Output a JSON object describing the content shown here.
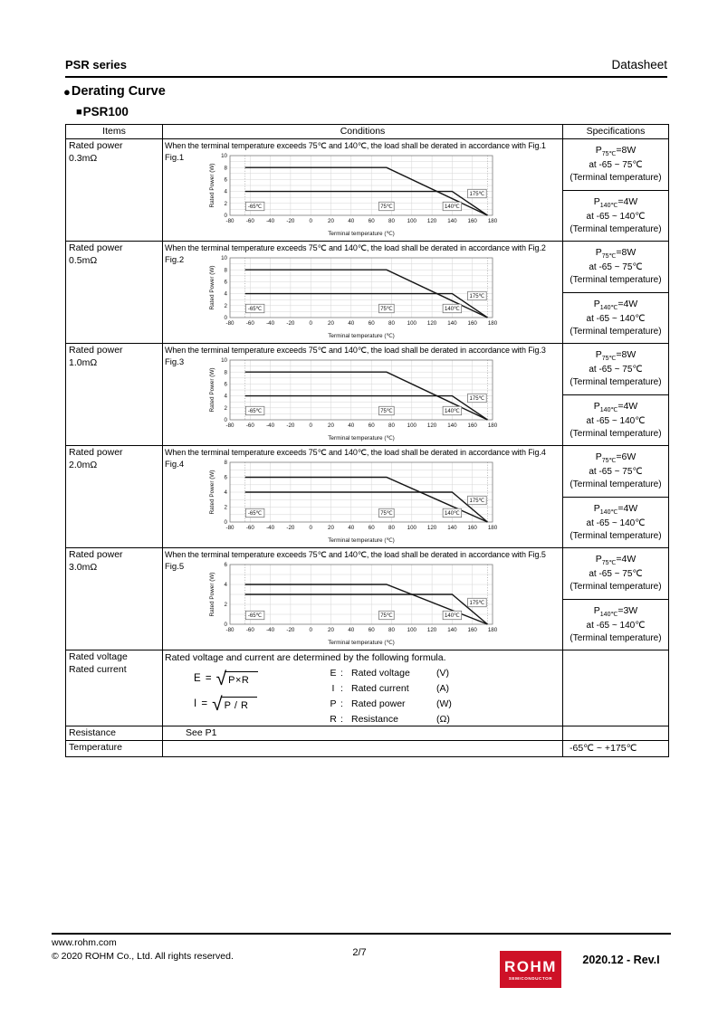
{
  "page": {
    "header_left": "PSR series",
    "header_right": "Datasheet",
    "section_bullet": "●",
    "section_title": "Derating Curve",
    "subsection_bullet": "■",
    "subsection_title": "PSR100"
  },
  "table": {
    "headers": {
      "items": "Items",
      "conditions": "Conditions",
      "specifications": "Specifications"
    }
  },
  "figures": [
    {
      "item_line1": "Rated power",
      "item_line2": "0.3mΩ",
      "condition": "When the terminal temperature exceeds 75℃ and 140℃, the load shall be derated in accordance with Fig.1",
      "label": "Fig.1",
      "chart": {
        "type": "line",
        "xlabel": "Terminal temperature (℃)",
        "ylabel": "Rated Power (W)",
        "xlim": [
          -80,
          180
        ],
        "xtick_step": 20,
        "ylim": [
          0,
          10
        ],
        "ytick_step": 2,
        "series": [
          {
            "name": "derating from 75℃ (8W)",
            "points": [
              [
                -65,
                8
              ],
              [
                75,
                8
              ],
              [
                175,
                0
              ]
            ]
          },
          {
            "name": "derating from 140℃ (4W)",
            "points": [
              [
                -65,
                4
              ],
              [
                140,
                4
              ],
              [
                175,
                0
              ]
            ]
          }
        ],
        "markers": [
          {
            "x": -65,
            "label": "-65℃"
          },
          {
            "x": 75,
            "label": "75℃"
          },
          {
            "x": 140,
            "label": "140℃"
          },
          {
            "x": 175,
            "label": "175℃"
          }
        ],
        "dotted_lines": [
          -65,
          175
        ]
      },
      "specs": [
        {
          "prefix": "P",
          "sub": "75℃",
          "value": "=8W",
          "range": "at -65 ~ 75℃",
          "note": "(Terminal temperature)"
        },
        {
          "prefix": "P",
          "sub": "140℃",
          "value": "=4W",
          "range": "at -65 ~ 140℃",
          "note": "(Terminal temperature)"
        }
      ]
    },
    {
      "item_line1": "Rated power",
      "item_line2": "0.5mΩ",
      "condition": "When the terminal temperature exceeds 75℃ and 140℃, the load shall be derated in accordance with Fig.2",
      "label": "Fig.2",
      "chart": {
        "type": "line",
        "xlabel": "Terminal temperature (℃)",
        "ylabel": "Rated Power (W)",
        "xlim": [
          -80,
          180
        ],
        "xtick_step": 20,
        "ylim": [
          0,
          10
        ],
        "ytick_step": 2,
        "series": [
          {
            "name": "derating from 75℃ (8W)",
            "points": [
              [
                -65,
                8
              ],
              [
                75,
                8
              ],
              [
                175,
                0
              ]
            ]
          },
          {
            "name": "derating from 140℃ (4W)",
            "points": [
              [
                -65,
                4
              ],
              [
                140,
                4
              ],
              [
                175,
                0
              ]
            ]
          }
        ],
        "markers": [
          {
            "x": -65,
            "label": "-65℃"
          },
          {
            "x": 75,
            "label": "75℃"
          },
          {
            "x": 140,
            "label": "140℃"
          },
          {
            "x": 175,
            "label": "175℃"
          }
        ],
        "dotted_lines": [
          -65,
          175
        ]
      },
      "specs": [
        {
          "prefix": "P",
          "sub": "75℃",
          "value": "=8W",
          "range": "at -65 ~ 75℃",
          "note": "(Terminal temperature)"
        },
        {
          "prefix": "P",
          "sub": "140℃",
          "value": "=4W",
          "range": "at -65 ~ 140℃",
          "note": "(Terminal temperature)"
        }
      ]
    },
    {
      "item_line1": "Rated power",
      "item_line2": "1.0mΩ",
      "condition": "When the terminal temperature exceeds 75℃ and 140℃, the load shall be derated in accordance with Fig.3",
      "label": "Fig.3",
      "chart": {
        "type": "line",
        "xlabel": "Terminal temperature (℃)",
        "ylabel": "Rated Power (W)",
        "xlim": [
          -80,
          180
        ],
        "xtick_step": 20,
        "ylim": [
          0,
          10
        ],
        "ytick_step": 2,
        "series": [
          {
            "name": "derating from 75℃ (8W)",
            "points": [
              [
                -65,
                8
              ],
              [
                75,
                8
              ],
              [
                175,
                0
              ]
            ]
          },
          {
            "name": "derating from 140℃ (4W)",
            "points": [
              [
                -65,
                4
              ],
              [
                140,
                4
              ],
              [
                175,
                0
              ]
            ]
          }
        ],
        "markers": [
          {
            "x": -65,
            "label": "-65℃"
          },
          {
            "x": 75,
            "label": "75℃"
          },
          {
            "x": 140,
            "label": "140℃"
          },
          {
            "x": 175,
            "label": "175℃"
          }
        ],
        "dotted_lines": [
          -65,
          175
        ]
      },
      "specs": [
        {
          "prefix": "P",
          "sub": "75℃",
          "value": "=8W",
          "range": "at -65 ~ 75℃",
          "note": "(Terminal temperature)"
        },
        {
          "prefix": "P",
          "sub": "140℃",
          "value": "=4W",
          "range": "at -65 ~ 140℃",
          "note": "(Terminal temperature)"
        }
      ]
    },
    {
      "item_line1": "Rated power",
      "item_line2": "2.0mΩ",
      "condition": "When the terminal temperature exceeds 75℃ and 140℃, the load shall be derated in accordance with Fig.4",
      "label": "Fig.4",
      "chart": {
        "type": "line",
        "xlabel": "Terminal temperature (℃)",
        "ylabel": "Rated Power (W)",
        "xlim": [
          -80,
          180
        ],
        "xtick_step": 20,
        "ylim": [
          0,
          8
        ],
        "ytick_step": 2,
        "series": [
          {
            "name": "derating from 75℃ (6W)",
            "points": [
              [
                -65,
                6
              ],
              [
                75,
                6
              ],
              [
                175,
                0
              ]
            ]
          },
          {
            "name": "derating from 140℃ (4W)",
            "points": [
              [
                -65,
                4
              ],
              [
                140,
                4
              ],
              [
                175,
                0
              ]
            ]
          }
        ],
        "markers": [
          {
            "x": -65,
            "label": "-65℃"
          },
          {
            "x": 75,
            "label": "75℃"
          },
          {
            "x": 140,
            "label": "140℃"
          },
          {
            "x": 175,
            "label": "175℃"
          }
        ],
        "dotted_lines": [
          -65,
          175
        ]
      },
      "specs": [
        {
          "prefix": "P",
          "sub": "75℃",
          "value": "=6W",
          "range": "at -65 ~ 75℃",
          "note": "(Terminal temperature)"
        },
        {
          "prefix": "P",
          "sub": "140℃",
          "value": "=4W",
          "range": "at -65 ~ 140℃",
          "note": "(Terminal temperature)"
        }
      ]
    },
    {
      "item_line1": "Rated power",
      "item_line2": "3.0mΩ",
      "condition": "When the terminal temperature exceeds 75℃ and 140℃, the load shall be derated in accordance with Fig.5",
      "label": "Fig.5",
      "chart": {
        "type": "line",
        "xlabel": "Terminal temperature (℃)",
        "ylabel": "Rated Power (W)",
        "xlim": [
          -80,
          180
        ],
        "xtick_step": 20,
        "ylim": [
          0,
          6
        ],
        "ytick_step": 2,
        "series": [
          {
            "name": "derating from 75℃ (4W)",
            "points": [
              [
                -65,
                4
              ],
              [
                75,
                4
              ],
              [
                175,
                0
              ]
            ]
          },
          {
            "name": "derating from 140℃ (3W)",
            "points": [
              [
                -65,
                3
              ],
              [
                140,
                3
              ],
              [
                175,
                0
              ]
            ]
          }
        ],
        "markers": [
          {
            "x": -65,
            "label": "-65℃"
          },
          {
            "x": 75,
            "label": "75℃"
          },
          {
            "x": 140,
            "label": "140℃"
          },
          {
            "x": 175,
            "label": "175℃"
          }
        ],
        "dotted_lines": [
          -65,
          175
        ]
      },
      "specs": [
        {
          "prefix": "P",
          "sub": "75℃",
          "value": "=4W",
          "range": "at -65 ~ 75℃",
          "note": "(Terminal temperature)"
        },
        {
          "prefix": "P",
          "sub": "140℃",
          "value": "=3W",
          "range": "at -65 ~ 140℃",
          "note": "(Terminal temperature)"
        }
      ]
    }
  ],
  "formula_row": {
    "item_line1": "Rated voltage",
    "item_line2": "Rated current",
    "intro": "Rated voltage and current are determined by the following formula.",
    "radical": "√",
    "formulas": [
      {
        "lhs": "E =",
        "radicand": "P×R"
      },
      {
        "lhs": "I =",
        "radicand": "P / R"
      }
    ],
    "legend": [
      {
        "symbol": "E",
        "colon": ":",
        "name": "Rated voltage",
        "unit": "(V)"
      },
      {
        "symbol": "I",
        "colon": ":",
        "name": "Rated current",
        "unit": "(A)"
      },
      {
        "symbol": "P",
        "colon": ":",
        "name": "Rated power",
        "unit": "(W)"
      },
      {
        "symbol": "R",
        "colon": ":",
        "name": "Resistance",
        "unit": "(Ω)"
      }
    ]
  },
  "resistance_row": {
    "item": "Resistance",
    "value": "See P1"
  },
  "temperature_row": {
    "item": "Temperature",
    "value": "-65℃ ~ +175℃"
  },
  "footer": {
    "url": "www.rohm.com",
    "copyright": "© 2020 ROHM Co., Ltd. All rights reserved.",
    "page_number": "2/7",
    "revision": "2020.12 - Rev.I",
    "logo_text": "ROHM",
    "logo_subtext": "SEMICONDUCTOR",
    "logo_color": "#CE1127"
  }
}
